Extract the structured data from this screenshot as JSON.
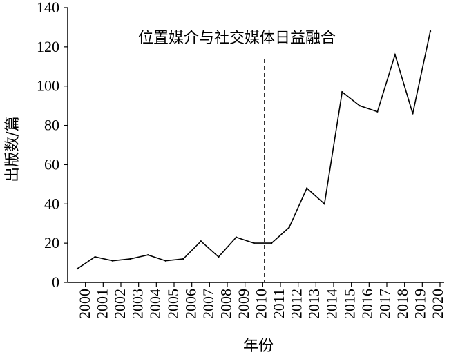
{
  "chart_data": {
    "type": "line",
    "title": "",
    "xlabel": "年份",
    "ylabel": "出版数/篇",
    "ylim": [
      0,
      140
    ],
    "yticks": [
      0,
      20,
      40,
      60,
      80,
      100,
      120,
      140
    ],
    "grid": false,
    "legend": "none",
    "categories": [
      "2000",
      "2001",
      "2002",
      "2003",
      "2004",
      "2005",
      "2006",
      "2007",
      "2008",
      "2009",
      "2010",
      "2011",
      "2012",
      "2013",
      "2014",
      "2015",
      "2016",
      "2017",
      "2018",
      "2019",
      "2020"
    ],
    "series": [
      {
        "values": [
          7,
          13,
          11,
          12,
          14,
          11,
          12,
          21,
          13,
          23,
          20,
          20,
          28,
          48,
          40,
          97,
          90,
          87,
          116,
          86,
          128
        ]
      }
    ],
    "reference_line": {
      "x": "2010",
      "style": "dashed"
    },
    "annotation": {
      "text": "位置媒介与社交媒体日益融合"
    }
  }
}
